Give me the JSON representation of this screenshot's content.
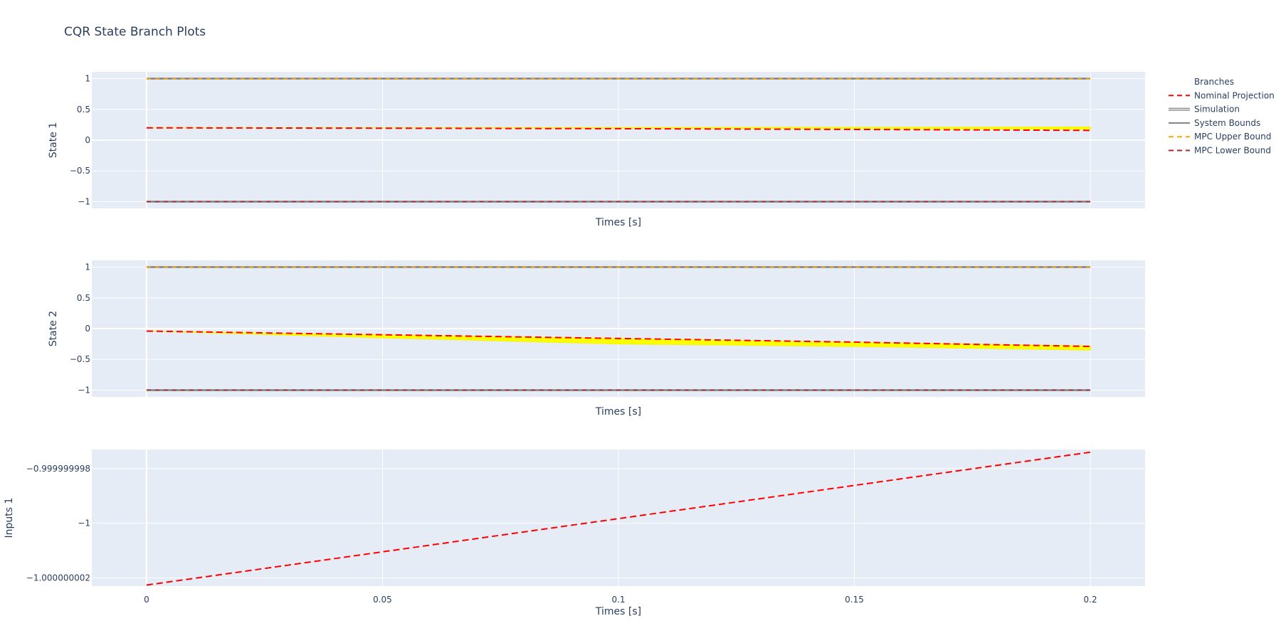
{
  "chart_data": {
    "type": "line",
    "title": "CQR State Branch Plots",
    "legend_placement": "top-right",
    "grid": true,
    "background": "#e5ecf6",
    "legend": [
      {
        "name": "Branches",
        "color": "#ffff00",
        "style": "dots"
      },
      {
        "name": "Nominal Projection",
        "color": "#ff0000",
        "style": "dash"
      },
      {
        "name": "Simulation",
        "color": "#888888",
        "style": "double"
      },
      {
        "name": "System Bounds",
        "color": "#808080",
        "style": "solid"
      },
      {
        "name": "MPC Upper Bound",
        "color": "#ffa500",
        "style": "dash"
      },
      {
        "name": "MPC Lower Bound",
        "color": "#a52a2a",
        "style": "dash"
      }
    ],
    "subplots": [
      {
        "ylabel": "State 1",
        "xlabel": "Times [s]",
        "show_xtick_labels": false,
        "xlim": [
          -0.0116,
          0.2116
        ],
        "ylim": [
          -1.11,
          1.11
        ],
        "yticks": [
          1,
          0.5,
          0,
          -0.5,
          -1
        ],
        "ytick_labels": [
          "1",
          "0.5",
          "0",
          "−0.5",
          "−1"
        ],
        "branches": {
          "x": [
            0,
            0.05,
            0.1,
            0.15,
            0.2
          ],
          "lower": [
            0.2,
            0.199,
            0.194,
            0.186,
            0.176
          ],
          "upper": [
            0.2,
            0.202,
            0.205,
            0.208,
            0.214
          ]
        },
        "nominal": {
          "x": [
            0,
            0.05,
            0.1,
            0.15,
            0.2
          ],
          "y": [
            0.2,
            0.194,
            0.186,
            0.174,
            0.158
          ]
        },
        "system_bounds": [
          1,
          -1
        ],
        "mpc_upper": 1,
        "mpc_lower": -1
      },
      {
        "ylabel": "State 2",
        "xlabel": "Times [s]",
        "show_xtick_labels": false,
        "xlim": [
          -0.0116,
          0.2116
        ],
        "ylim": [
          -1.11,
          1.11
        ],
        "yticks": [
          1,
          0.5,
          0,
          -0.5,
          -1
        ],
        "ytick_labels": [
          "1",
          "0.5",
          "0",
          "−0.5",
          "−1"
        ],
        "branches": {
          "x": [
            0,
            0.05,
            0.1,
            0.15,
            0.2
          ],
          "lower": [
            -0.04,
            -0.15,
            -0.25,
            -0.29,
            -0.35
          ],
          "upper": [
            -0.04,
            -0.1,
            -0.16,
            -0.22,
            -0.28
          ]
        },
        "nominal": {
          "x": [
            0,
            0.05,
            0.1,
            0.15,
            0.2
          ],
          "y": [
            -0.04,
            -0.1,
            -0.16,
            -0.22,
            -0.29
          ]
        },
        "system_bounds": [
          1,
          -1
        ],
        "mpc_upper": 1,
        "mpc_lower": -1
      },
      {
        "ylabel": "Inputs 1",
        "xlabel": "Times [s]",
        "show_xtick_labels": true,
        "xlim": [
          -0.0116,
          0.2116
        ],
        "ylim": [
          -1.000000002298,
          -0.999999997303
        ],
        "yticks": [
          -0.999999998,
          -1.0,
          -1.000000002
        ],
        "ytick_labels": [
          "−0.999999998",
          "−1",
          "−1.000000002"
        ],
        "nominal": {
          "x": [
            0,
            0.2
          ],
          "y": [
            -1.00000000226,
            -0.9999999974
          ]
        }
      }
    ],
    "xticks": [
      0,
      0.05,
      0.1,
      0.15,
      0.2
    ],
    "xtick_labels": [
      "0",
      "0.05",
      "0.1",
      "0.15",
      "0.2"
    ]
  }
}
